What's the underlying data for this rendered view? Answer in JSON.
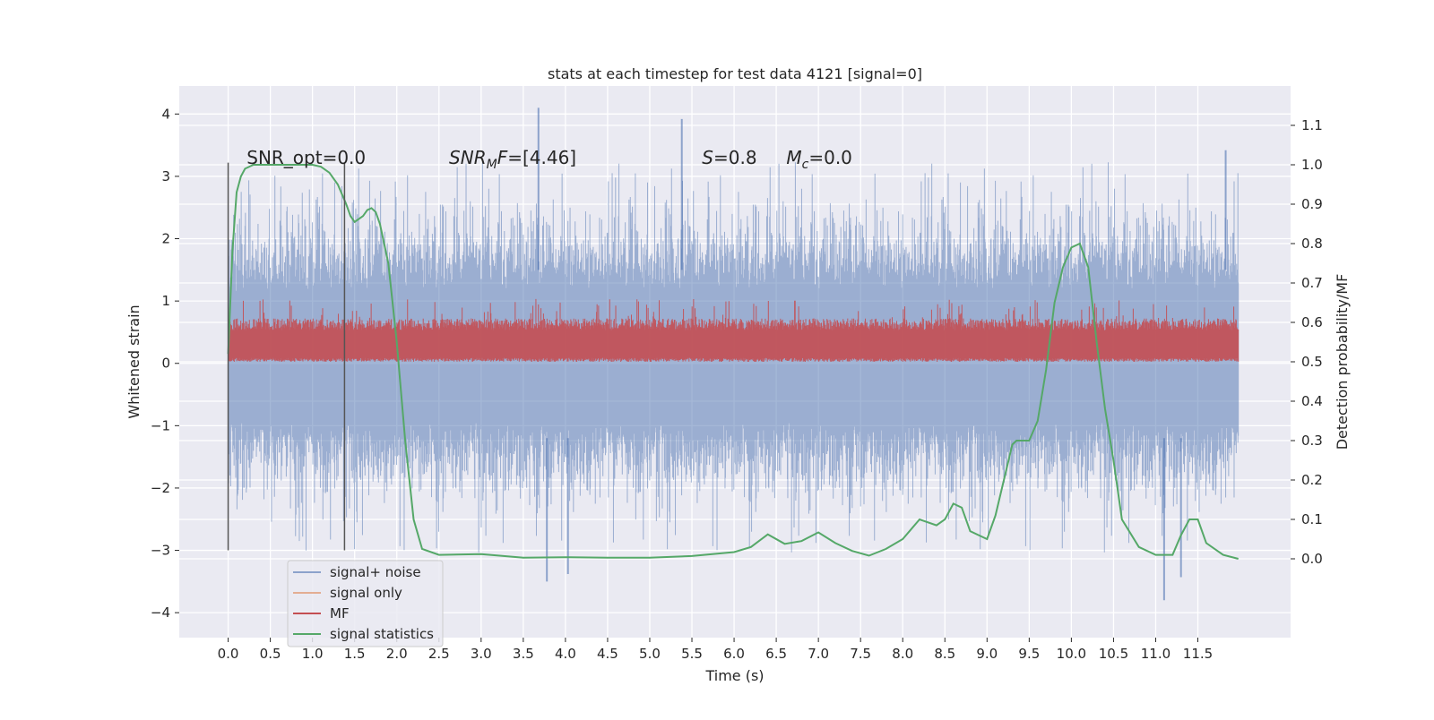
{
  "chart_data": {
    "type": "line",
    "title": "stats at each timestep for test data 4121 [signal=0]",
    "xlabel": "Time (s)",
    "ylabel": "Whitened strain",
    "ylabel_right": "Detection probability/MF",
    "xlim": [
      -0.58,
      12.6
    ],
    "ylim": [
      -4.4,
      4.45
    ],
    "ylim_right": [
      -0.2,
      1.2
    ],
    "x_ticks": [
      0.0,
      0.5,
      1.0,
      1.5,
      2.0,
      2.5,
      3.0,
      3.5,
      4.0,
      4.5,
      5.0,
      5.5,
      6.0,
      6.5,
      7.0,
      7.5,
      8.0,
      8.5,
      9.0,
      9.5,
      10.0,
      10.5,
      11.0,
      11.5
    ],
    "x_tick_labels": [
      "0.0",
      "0.5",
      "1.0",
      "1.5",
      "2.0",
      "2.5",
      "3.0",
      "3.5",
      "4.0",
      "4.5",
      "5.0",
      "5.5",
      "6.0",
      "6.5",
      "7.0",
      "7.5",
      "8.0",
      "8.5",
      "9.0",
      "9.5",
      "10.0",
      "10.5",
      "11.0",
      "11.5"
    ],
    "y_ticks": [
      -4,
      -3,
      -2,
      -1,
      0,
      1,
      2,
      3,
      4
    ],
    "y_tick_labels": [
      "−4",
      "−3",
      "−2",
      "−1",
      "0",
      "1",
      "2",
      "3",
      "4"
    ],
    "y_ticks_right": [
      0.0,
      0.1,
      0.2,
      0.3,
      0.4,
      0.5,
      0.6,
      0.7,
      0.8,
      0.9,
      1.0,
      1.1
    ],
    "y_tick_labels_right": [
      "0.0",
      "0.1",
      "0.2",
      "0.3",
      "0.4",
      "0.5",
      "0.6",
      "0.7",
      "0.8",
      "0.9",
      "1.0",
      "1.1"
    ],
    "grid": true,
    "legend_position": "lower-left",
    "series": [
      {
        "name": "signal+ noise",
        "axis": "left",
        "color": "#4c72b0",
        "style": "dense noise trace, alpha 0.5",
        "x_range": [
          0.0,
          11.98
        ],
        "typical_band": [
          -1.8,
          2.0
        ],
        "peaks": [
          {
            "x": 3.68,
            "y": 4.1
          },
          {
            "x": 5.38,
            "y": 3.92
          },
          {
            "x": 3.78,
            "y": -3.5
          },
          {
            "x": 4.03,
            "y": -3.38
          },
          {
            "x": 11.1,
            "y": -3.8
          },
          {
            "x": 11.3,
            "y": -3.43
          },
          {
            "x": 11.83,
            "y": 3.42
          }
        ]
      },
      {
        "name": "signal only",
        "axis": "left",
        "color": "#dd8452",
        "values": []
      },
      {
        "name": "MF",
        "axis": "right",
        "color": "#c44e52",
        "style": "dense trace, filled band",
        "x_range": [
          0.0,
          11.98
        ],
        "typical_band": [
          0.5,
          0.6
        ],
        "max": 0.66
      },
      {
        "name": "signal statistics",
        "axis": "right",
        "color": "#55a868",
        "x": [
          0.0,
          0.05,
          0.1,
          0.15,
          0.2,
          0.3,
          0.5,
          0.8,
          1.0,
          1.1,
          1.2,
          1.3,
          1.4,
          1.45,
          1.5,
          1.6,
          1.65,
          1.7,
          1.75,
          1.8,
          1.9,
          2.0,
          2.1,
          2.2,
          2.3,
          2.5,
          3.0,
          3.5,
          4.0,
          4.5,
          5.0,
          5.5,
          6.0,
          6.2,
          6.4,
          6.6,
          6.8,
          7.0,
          7.2,
          7.4,
          7.6,
          7.8,
          8.0,
          8.2,
          8.4,
          8.5,
          8.6,
          8.7,
          8.8,
          9.0,
          9.1,
          9.2,
          9.3,
          9.35,
          9.5,
          9.6,
          9.7,
          9.8,
          9.9,
          10.0,
          10.1,
          10.2,
          10.3,
          10.4,
          10.5,
          10.6,
          10.8,
          11.0,
          11.2,
          11.3,
          11.4,
          11.5,
          11.6,
          11.8,
          11.98
        ],
        "values": [
          0.52,
          0.78,
          0.93,
          0.97,
          0.99,
          1.0,
          1.0,
          1.0,
          1.0,
          0.995,
          0.98,
          0.95,
          0.9,
          0.87,
          0.855,
          0.87,
          0.885,
          0.89,
          0.88,
          0.85,
          0.75,
          0.55,
          0.3,
          0.1,
          0.025,
          0.01,
          0.012,
          0.003,
          0.004,
          0.003,
          0.003,
          0.007,
          0.017,
          0.03,
          0.062,
          0.038,
          0.045,
          0.067,
          0.04,
          0.02,
          0.008,
          0.025,
          0.05,
          0.1,
          0.085,
          0.1,
          0.14,
          0.13,
          0.07,
          0.05,
          0.11,
          0.2,
          0.29,
          0.3,
          0.3,
          0.35,
          0.48,
          0.65,
          0.74,
          0.79,
          0.8,
          0.74,
          0.55,
          0.38,
          0.25,
          0.1,
          0.03,
          0.01,
          0.01,
          0.06,
          0.1,
          0.1,
          0.04,
          0.01,
          0.0
        ]
      }
    ],
    "vertical_markers": [
      {
        "x": 0.0,
        "color": "#555555",
        "y_range": [
          -3.0,
          3.22
        ]
      },
      {
        "x": 1.38,
        "color": "#555555",
        "y_range": [
          -3.0,
          3.22
        ]
      }
    ],
    "annotations": [
      {
        "text": "SNR_opt=0.0",
        "x": 0.22,
        "y": 3.2,
        "style": "normal"
      },
      {
        "text": "SNR_MF=[4.46]",
        "x": 2.62,
        "y": 3.2,
        "style": "math_subscript",
        "base": "SNR",
        "sub": "M",
        "rest": "F=[4.46]"
      },
      {
        "text": "S=0.8",
        "x": 5.62,
        "y": 3.2,
        "style": "math_italic",
        "base": "S",
        "rest": "=0.8"
      },
      {
        "text": "M_c=0.0",
        "x": 6.62,
        "y": 3.2,
        "style": "math_subscript",
        "base": "M",
        "sub": "c",
        "rest": "=0.0"
      }
    ]
  }
}
